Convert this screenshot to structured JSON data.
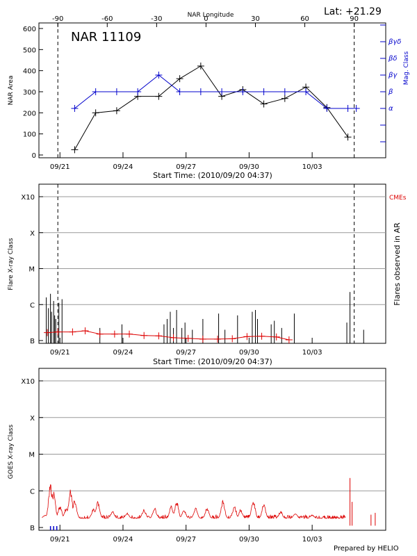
{
  "header": {
    "lat_label": "Lat: +21.29",
    "footer_label": "Prepared by HELIO"
  },
  "colors": {
    "black": "#000000",
    "blue": "#0000cc",
    "red": "#dd0000",
    "grid": "#999999"
  },
  "chart_data": [
    {
      "id": "nar",
      "type": "line",
      "title": "NAR 11109",
      "top_axis_label": "NAR Longitude",
      "top_ticks": [
        -90,
        -60,
        -30,
        0,
        30,
        60,
        90
      ],
      "xlabel": "Start Time: (2010/09/20 04:37)",
      "x_tick_labels": [
        "09/21",
        "09/24",
        "09/27",
        "09/30",
        "10/03"
      ],
      "x_tick_days": [
        1,
        4,
        7,
        10,
        13
      ],
      "xlim_days": [
        0,
        16.5
      ],
      "ylabel": "NAR Area",
      "ylim": [
        0,
        600
      ],
      "y_ticks": [
        0,
        100,
        200,
        300,
        400,
        500,
        600
      ],
      "right_label": "Mag. Class",
      "mag_classes": [
        "α",
        "β",
        "βγ",
        "βδ",
        "βγδ"
      ],
      "vlines_days": [
        0.9,
        15.0
      ],
      "series": [
        {
          "name": "NAR Area",
          "color": "black",
          "x": [
            1.7,
            2.7,
            3.7,
            4.7,
            5.7,
            6.7,
            7.7,
            8.7,
            9.7,
            10.7,
            11.7,
            12.7,
            13.7,
            14.7
          ],
          "values": [
            25,
            200,
            210,
            278,
            278,
            362,
            422,
            278,
            310,
            242,
            268,
            322,
            225,
            85
          ]
        },
        {
          "name": "Mag. Class",
          "color": "blue",
          "x": [
            1.7,
            2.7,
            3.7,
            4.7,
            5.7,
            6.7,
            7.7,
            8.7,
            9.7,
            10.7,
            11.7,
            12.7,
            13.7,
            14.7,
            15.1
          ],
          "class_index": [
            0,
            1,
            1,
            1,
            2,
            1,
            1,
            1,
            1,
            1,
            1,
            1,
            0,
            0,
            0
          ]
        }
      ]
    },
    {
      "id": "flares",
      "type": "bar",
      "xlabel": "Start Time: (2010/09/20 04:37)",
      "ylabel": "Flare X-ray Class",
      "right_label": "Flares observed in AR",
      "legend": "CMEs",
      "y_tick_labels": [
        "B",
        "C",
        "M",
        "X",
        "X10"
      ],
      "y_levels": [
        0,
        1,
        2,
        3,
        4
      ],
      "vlines_days": [
        0.9,
        15.0
      ],
      "flares": [
        {
          "day": 0.35,
          "level": 1.2
        },
        {
          "day": 0.45,
          "level": 0.9
        },
        {
          "day": 0.55,
          "level": 1.3
        },
        {
          "day": 0.6,
          "level": 0.8
        },
        {
          "day": 0.7,
          "level": 1.1
        },
        {
          "day": 0.75,
          "level": 0.7
        },
        {
          "day": 0.8,
          "level": 0.6
        },
        {
          "day": 0.95,
          "level": 1.05
        },
        {
          "day": 1.1,
          "level": 1.15
        },
        {
          "day": 2.9,
          "level": 0.35
        },
        {
          "day": 3.95,
          "level": 0.45
        },
        {
          "day": 5.95,
          "level": 0.45
        },
        {
          "day": 6.1,
          "level": 0.6
        },
        {
          "day": 6.25,
          "level": 0.8
        },
        {
          "day": 6.4,
          "level": 0.35
        },
        {
          "day": 6.55,
          "level": 0.85
        },
        {
          "day": 6.8,
          "level": 0.35
        },
        {
          "day": 6.95,
          "level": 0.5
        },
        {
          "day": 7.3,
          "level": 0.3
        },
        {
          "day": 7.8,
          "level": 0.6
        },
        {
          "day": 8.55,
          "level": 0.75
        },
        {
          "day": 8.85,
          "level": 0.3
        },
        {
          "day": 9.45,
          "level": 0.7
        },
        {
          "day": 10.15,
          "level": 0.8
        },
        {
          "day": 10.3,
          "level": 0.85
        },
        {
          "day": 10.4,
          "level": 0.6
        },
        {
          "day": 11.05,
          "level": 0.45
        },
        {
          "day": 11.2,
          "level": 0.55
        },
        {
          "day": 11.55,
          "level": 0.35
        },
        {
          "day": 12.15,
          "level": 0.75
        },
        {
          "day": 14.65,
          "level": 0.5
        },
        {
          "day": 14.8,
          "level": 1.35
        },
        {
          "day": 15.45,
          "level": 0.3
        }
      ],
      "cme_series": {
        "days": [
          0.4,
          0.9,
          1.6,
          2.2,
          2.9,
          3.6,
          4.3,
          5.0,
          5.7,
          6.4,
          7.1,
          7.8,
          8.5,
          9.2,
          9.9,
          10.6,
          11.3,
          11.9
        ],
        "levels": [
          0.22,
          0.24,
          0.24,
          0.27,
          0.18,
          0.18,
          0.18,
          0.14,
          0.13,
          0.08,
          0.06,
          0.04,
          0.04,
          0.05,
          0.11,
          0.12,
          0.1,
          0.02
        ]
      }
    },
    {
      "id": "goes",
      "type": "line",
      "ylabel": "GOES X-ray Class",
      "y_tick_labels": [
        "B",
        "C",
        "M",
        "X",
        "X10"
      ],
      "y_levels": [
        0,
        1,
        2,
        3,
        4
      ],
      "x_tick_labels": [
        "09/21",
        "09/24",
        "09/27",
        "09/30",
        "10/03"
      ],
      "x_tick_days": [
        1,
        4,
        7,
        10,
        13
      ],
      "baseline_level": 0.25,
      "spikes": [
        {
          "day": 0.3,
          "level": 0.35
        },
        {
          "day": 0.55,
          "level": 1.3
        },
        {
          "day": 0.62,
          "level": 0.9
        },
        {
          "day": 0.7,
          "level": 1.0
        },
        {
          "day": 1.0,
          "level": 0.6
        },
        {
          "day": 1.3,
          "level": 0.55
        },
        {
          "day": 1.5,
          "level": 1.05
        },
        {
          "day": 1.7,
          "level": 0.8
        },
        {
          "day": 2.6,
          "level": 0.55
        },
        {
          "day": 2.8,
          "level": 0.75
        },
        {
          "day": 3.5,
          "level": 0.45
        },
        {
          "day": 4.2,
          "level": 0.4
        },
        {
          "day": 5.0,
          "level": 0.5
        },
        {
          "day": 5.5,
          "level": 0.55
        },
        {
          "day": 6.3,
          "level": 0.6
        },
        {
          "day": 6.55,
          "level": 0.75
        },
        {
          "day": 6.9,
          "level": 0.5
        },
        {
          "day": 7.45,
          "level": 0.55
        },
        {
          "day": 8.0,
          "level": 0.55
        },
        {
          "day": 8.75,
          "level": 0.75
        },
        {
          "day": 9.3,
          "level": 0.6
        },
        {
          "day": 9.6,
          "level": 0.5
        },
        {
          "day": 10.2,
          "level": 0.75
        },
        {
          "day": 10.7,
          "level": 0.65
        },
        {
          "day": 11.5,
          "level": 0.45
        },
        {
          "day": 12.2,
          "level": 0.4
        },
        {
          "day": 13.0,
          "level": 0.35
        },
        {
          "day": 14.8,
          "level": 1.35
        },
        {
          "day": 14.9,
          "level": 0.7
        },
        {
          "day": 15.8,
          "level": 0.35
        },
        {
          "day": 16.0,
          "level": 0.4
        }
      ]
    }
  ]
}
